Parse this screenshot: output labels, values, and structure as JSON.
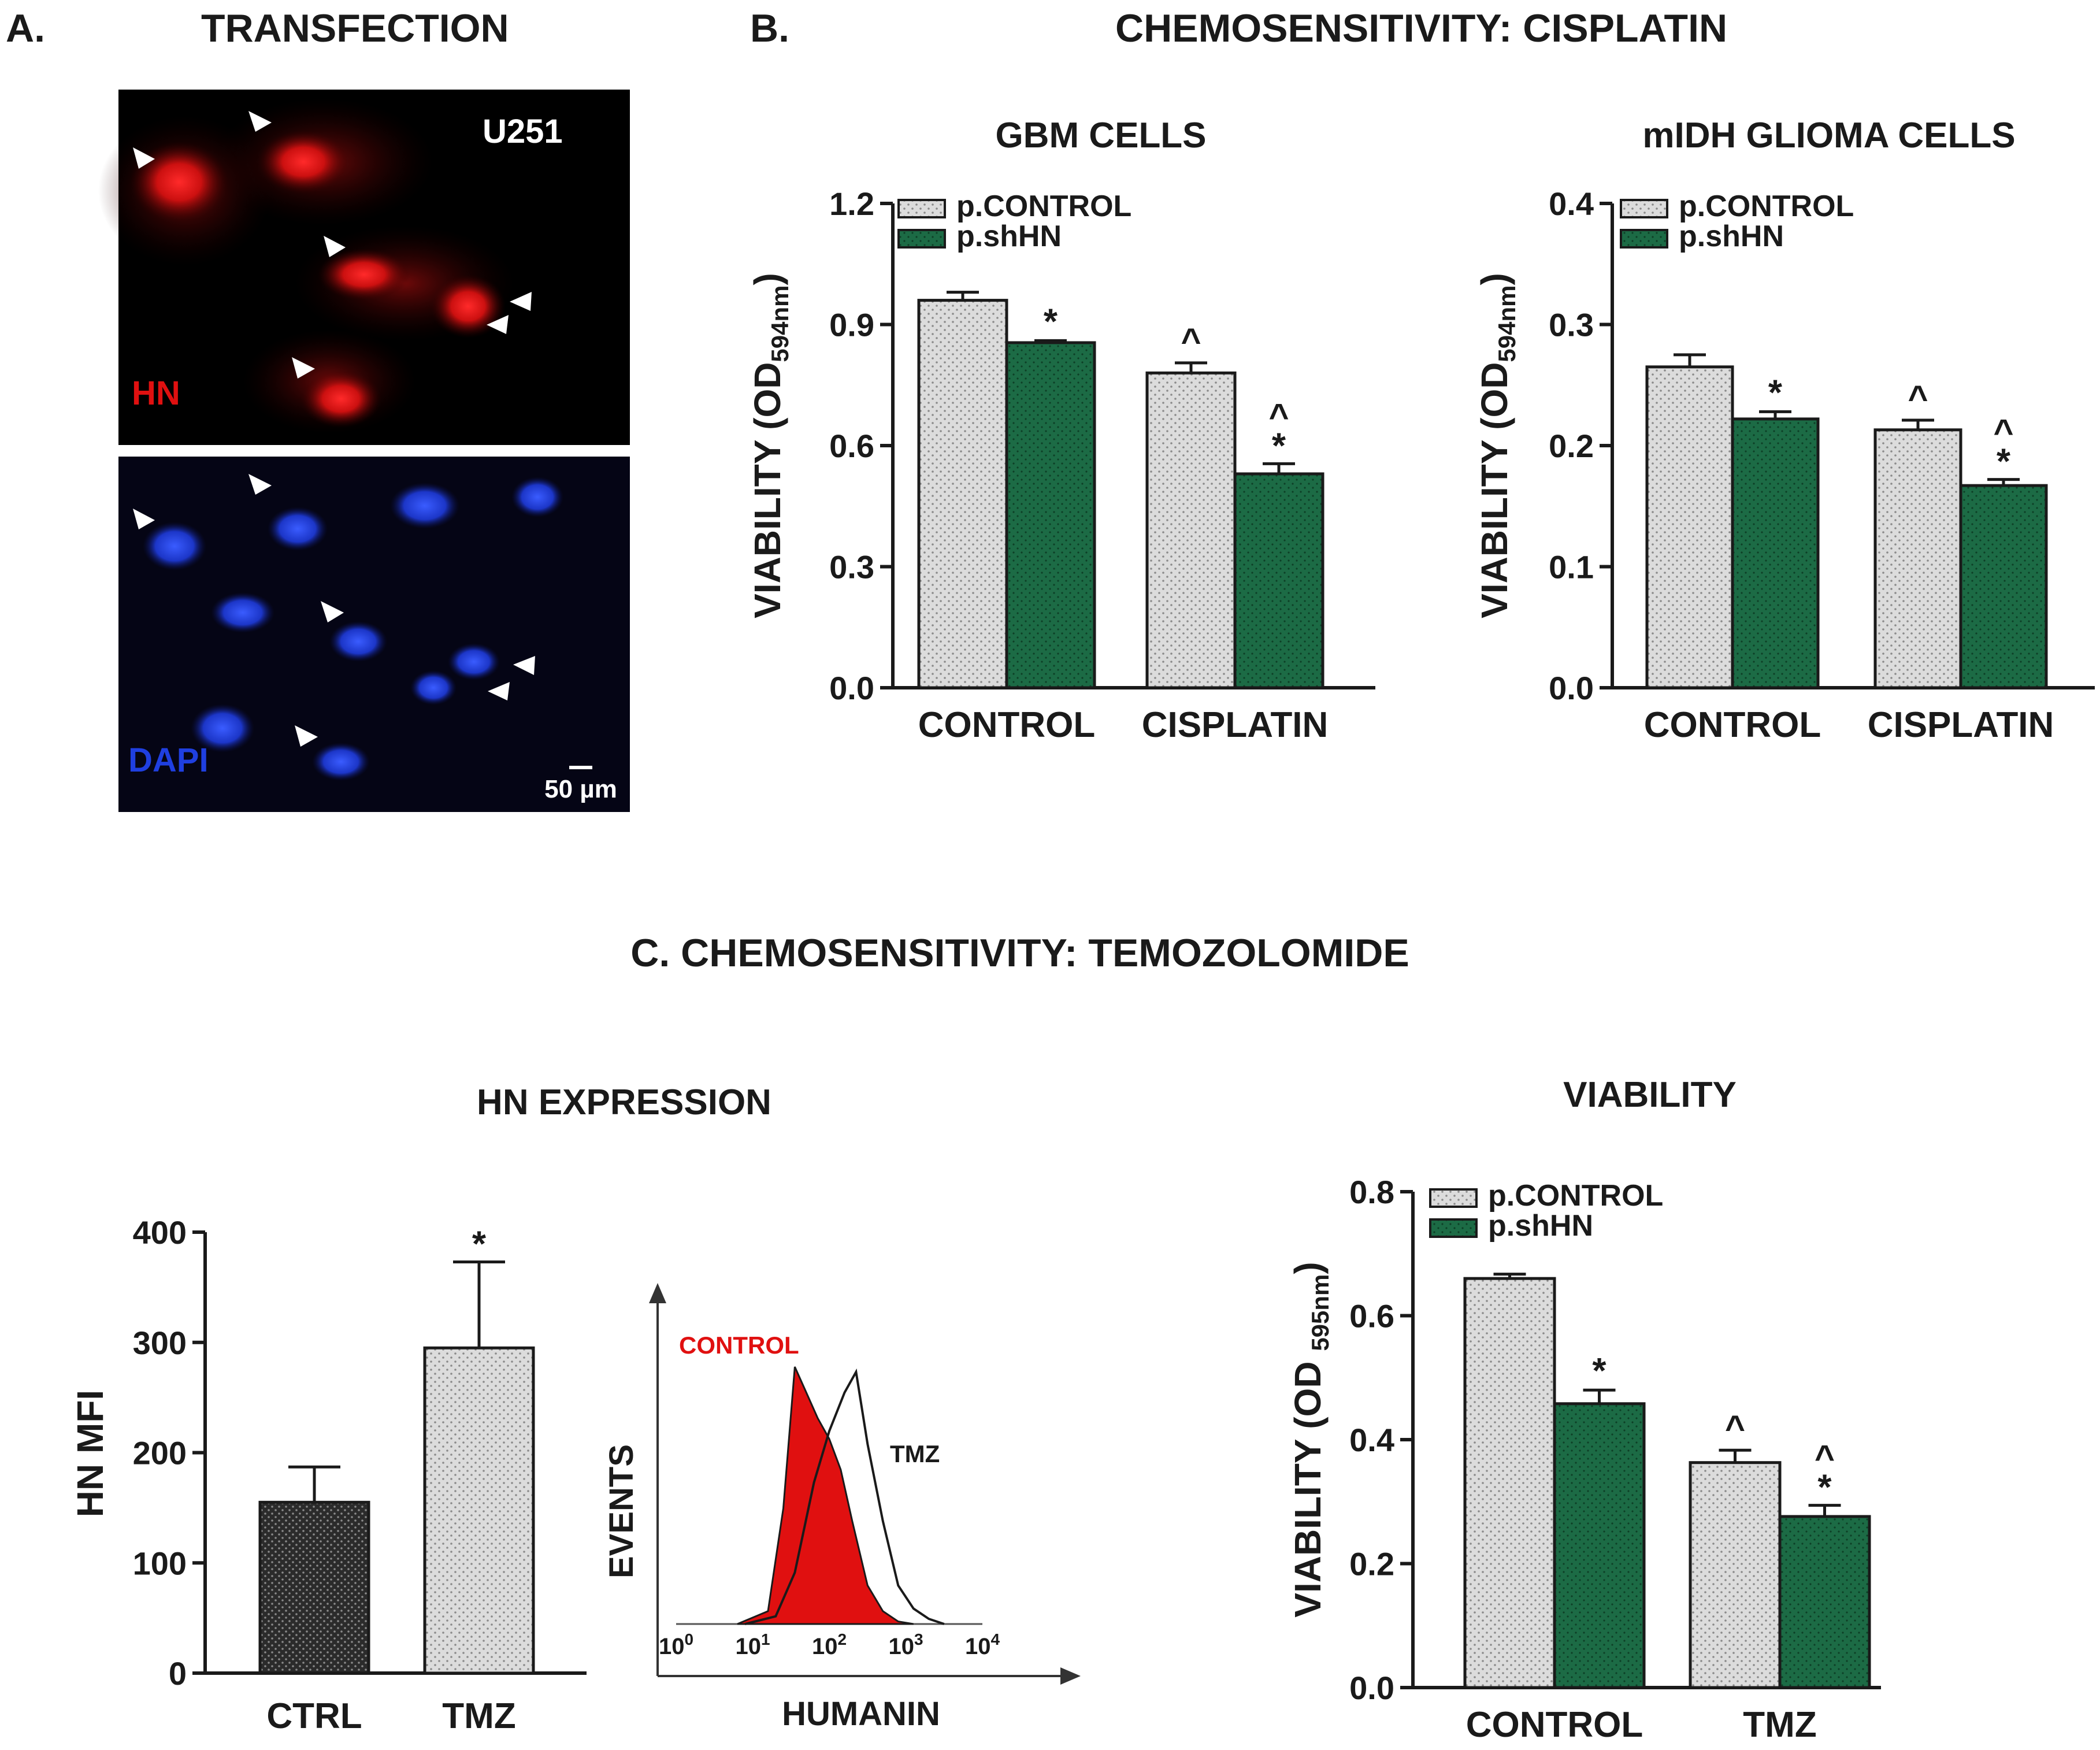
{
  "colors": {
    "control_fill": "#d9d9d9",
    "shhn_fill": "#1c6b45",
    "ctrl_dark": "#2b2b2b",
    "red": "#e01010",
    "nuclei": "#1f3fe0"
  },
  "panel_a": {
    "label": "A.",
    "title": "TRANSFECTION",
    "cell_line": "U251",
    "top_stain": "HN",
    "bottom_stain": "DAPI",
    "scale_bar": "50 µm"
  },
  "panel_b": {
    "label": "B.",
    "title": "CHEMOSENSITIVITY: CISPLATIN"
  },
  "panel_c": {
    "title": "C.  CHEMOSENSITIVITY:  TEMOZOLOMIDE"
  },
  "chart_data": [
    {
      "id": "gbm",
      "type": "bar",
      "title": "GBM CELLS",
      "ylabel_main": "VIABILITY (OD",
      "ylabel_sub": "594nm",
      "ylabel_end": ")",
      "categories": [
        "CONTROL",
        "CISPLATIN"
      ],
      "ylim": [
        0,
        1.2
      ],
      "yticks": [
        0.0,
        0.3,
        0.6,
        0.9,
        1.2
      ],
      "tick_labels": [
        "0.0",
        "0.3",
        "0.6",
        "0.9",
        "1.2"
      ],
      "series": [
        {
          "name": "p.CONTROL",
          "values": [
            0.96,
            0.78
          ],
          "errors": [
            0.02,
            0.025
          ],
          "marks": [
            "",
            "^"
          ]
        },
        {
          "name": "p.shHN",
          "values": [
            0.855,
            0.53
          ],
          "errors": [
            0.005,
            0.025
          ],
          "marks": [
            "*",
            "*^"
          ]
        }
      ]
    },
    {
      "id": "midh",
      "type": "bar",
      "title": "mIDH GLIOMA CELLS",
      "ylabel_main": "VIABILITY (OD",
      "ylabel_sub": "594nm",
      "ylabel_end": ")",
      "categories": [
        "CONTROL",
        "CISPLATIN"
      ],
      "ylim": [
        0,
        0.4
      ],
      "yticks": [
        0.0,
        0.1,
        0.2,
        0.3,
        0.4
      ],
      "tick_labels": [
        "0.0",
        "0.1",
        "0.2",
        "0.3",
        "0.4"
      ],
      "series": [
        {
          "name": "p.CONTROL",
          "values": [
            0.265,
            0.213
          ],
          "errors": [
            0.01,
            0.008
          ],
          "marks": [
            "",
            "^"
          ]
        },
        {
          "name": "p.shHN",
          "values": [
            0.222,
            0.167
          ],
          "errors": [
            0.006,
            0.005
          ],
          "marks": [
            "*",
            "*^"
          ]
        }
      ]
    },
    {
      "id": "hn",
      "type": "bar",
      "title": "HN EXPRESSION",
      "ylabel": "HN MFI",
      "categories": [
        "CTRL",
        "TMZ"
      ],
      "ylim": [
        0,
        400
      ],
      "yticks": [
        0,
        100,
        200,
        300,
        400
      ],
      "tick_labels": [
        "0",
        "100",
        "200",
        "300",
        "400"
      ],
      "values": [
        155,
        295
      ],
      "errors": [
        32,
        78
      ],
      "marks": [
        "",
        "*"
      ]
    },
    {
      "id": "flow",
      "type": "area",
      "xlabel": "HUMANIN",
      "ylabel": "EVENTS",
      "x_tick_labels": [
        "10",
        "10",
        "10",
        "10",
        "10"
      ],
      "x_tick_exps": [
        "0",
        "1",
        "2",
        "3",
        "4"
      ],
      "series": [
        {
          "name": "CONTROL",
          "x": [
            0.8,
            1.2,
            1.4,
            1.55,
            1.7,
            1.85,
            2.0,
            2.15,
            2.3,
            2.5,
            2.7,
            2.9,
            3.1
          ],
          "y": [
            0,
            5,
            45,
            100,
            90,
            80,
            72,
            60,
            40,
            15,
            5,
            1,
            0
          ]
        },
        {
          "name": "TMZ",
          "x": [
            0.9,
            1.3,
            1.55,
            1.8,
            2.0,
            2.2,
            2.35,
            2.5,
            2.7,
            2.9,
            3.1,
            3.3,
            3.5
          ],
          "y": [
            0,
            3,
            20,
            55,
            75,
            90,
            98,
            70,
            40,
            15,
            6,
            2,
            0
          ]
        }
      ]
    },
    {
      "id": "tmz",
      "type": "bar",
      "title": "VIABILITY",
      "ylabel_main": "VIABILITY (OD ",
      "ylabel_sub": "595nm",
      "ylabel_end": ")",
      "categories": [
        "CONTROL",
        "TMZ"
      ],
      "ylim": [
        0,
        0.8
      ],
      "yticks": [
        0.0,
        0.2,
        0.4,
        0.6,
        0.8
      ],
      "tick_labels": [
        "0.0",
        "0.2",
        "0.4",
        "0.6",
        "0.8"
      ],
      "series": [
        {
          "name": "p.CONTROL",
          "values": [
            0.66,
            0.363
          ],
          "errors": [
            0.007,
            0.02
          ],
          "marks": [
            "",
            "^"
          ]
        },
        {
          "name": "p.shHN",
          "values": [
            0.458,
            0.276
          ],
          "errors": [
            0.022,
            0.018
          ],
          "marks": [
            "*",
            "*^"
          ]
        }
      ]
    }
  ]
}
